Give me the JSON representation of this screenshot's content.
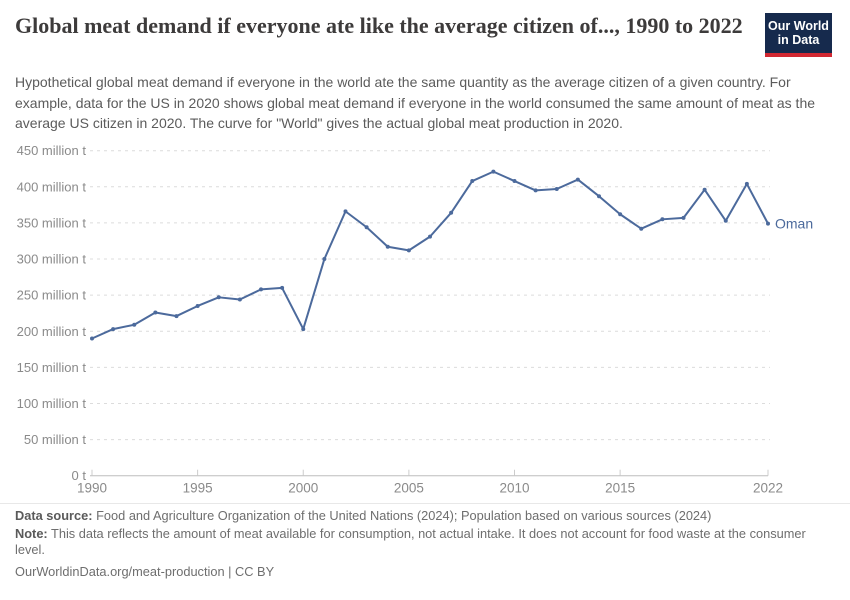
{
  "header": {
    "title": "Global meat demand if everyone ate like the average citizen of..., 1990 to 2022",
    "logo_line1": "Our World",
    "logo_line2": "in Data"
  },
  "subtitle": "Hypothetical global meat demand if everyone in the world ate the same quantity as the average citizen of a given country. For example, data for the US in 2020 shows global meat demand if everyone in the world consumed the same amount of meat as the average US citizen in 2020. The curve for \"World\" gives the actual global meat production in 2020.",
  "chart_data": {
    "type": "line",
    "title": "Global meat demand if everyone ate like the average citizen of..., 1990 to 2022",
    "unit": "million t",
    "xlim": [
      1990,
      2022
    ],
    "ylim": [
      0,
      450
    ],
    "grid": "horizontal-dashed",
    "legend_position": "end-of-line-label",
    "x": [
      1990,
      1991,
      1992,
      1993,
      1994,
      1995,
      1996,
      1997,
      1998,
      1999,
      2000,
      2001,
      2002,
      2003,
      2004,
      2005,
      2006,
      2007,
      2008,
      2009,
      2010,
      2011,
      2012,
      2013,
      2014,
      2015,
      2016,
      2017,
      2018,
      2019,
      2020,
      2021,
      2022
    ],
    "series": [
      {
        "name": "Oman",
        "color": "#4C6A9C",
        "values": [
          190,
          203,
          209,
          226,
          221,
          235,
          247,
          244,
          258,
          260,
          203,
          300,
          366,
          344,
          317,
          312,
          331,
          364,
          408,
          421,
          408,
          395,
          397,
          410,
          387,
          362,
          342,
          355,
          357,
          396,
          353,
          404,
          349
        ]
      }
    ],
    "x_ticks": [
      1990,
      1995,
      2000,
      2005,
      2010,
      2015,
      2022
    ],
    "y_ticks": [
      {
        "value": 0,
        "label": "0 t"
      },
      {
        "value": 50,
        "label": "50 million t"
      },
      {
        "value": 100,
        "label": "100 million t"
      },
      {
        "value": 150,
        "label": "150 million t"
      },
      {
        "value": 200,
        "label": "200 million t"
      },
      {
        "value": 250,
        "label": "250 million t"
      },
      {
        "value": 300,
        "label": "300 million t"
      },
      {
        "value": 350,
        "label": "350 million t"
      },
      {
        "value": 400,
        "label": "400 million t"
      },
      {
        "value": 450,
        "label": "450 million t"
      }
    ]
  },
  "footer": {
    "data_source_label": "Data source:",
    "data_source": "Food and Agriculture Organization of the United Nations (2024); Population based on various sources (2024)",
    "note_label": "Note:",
    "note": "This data reflects the amount of meat available for consumption, not actual intake. It does not account for food waste at the consumer level.",
    "link": "OurWorldinData.org/meat-production | CC BY"
  },
  "colors": {
    "line": "#4C6A9C",
    "grid": "#dcdcdc",
    "axis": "#bdbdbd",
    "tick": "#cccccc",
    "axis_text": "#8a8a8a",
    "logo_bg": "#162a4d",
    "logo_red": "#d22832"
  }
}
